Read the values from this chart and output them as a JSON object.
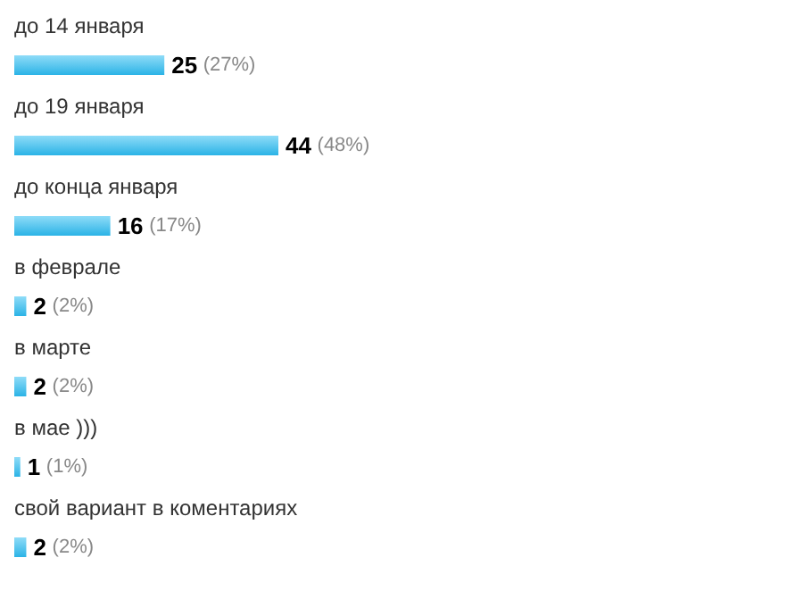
{
  "chart_data": {
    "type": "bar",
    "orientation": "horizontal",
    "categories": [
      "до 14 января",
      "до 19 января",
      "до конца января",
      "в феврале",
      "в марте",
      "в мае )))",
      "свой вариант в коментариях"
    ],
    "values": [
      25,
      44,
      16,
      2,
      2,
      1,
      2
    ],
    "color": "#2bb3e6",
    "value_labels": [
      "25 (27%)",
      "44 (48%)",
      "16 (17%)",
      "2 (2%)",
      "2 (2%)",
      "1 (1%)",
      "2 (2%)"
    ]
  }
}
